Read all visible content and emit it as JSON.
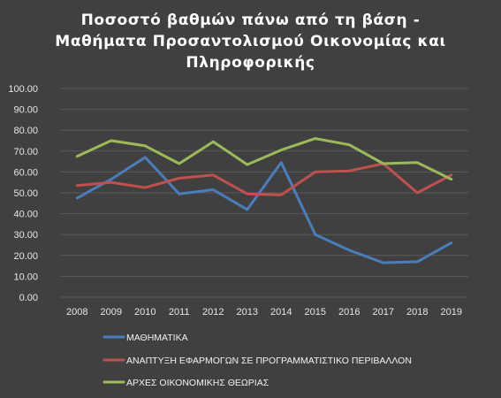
{
  "chart_data": {
    "type": "line",
    "title_lines": [
      "Ποσοστό βαθμών πάνω από τη βάση -",
      "Μαθήματα Προσαντολισμού Οικονομίας και",
      "Πληροφορικής"
    ],
    "x": [
      "2008",
      "2009",
      "2010",
      "2011",
      "2012",
      "2013",
      "2014",
      "2015",
      "2016",
      "2017",
      "2018",
      "2019"
    ],
    "ylim": [
      0,
      100
    ],
    "yticks": [
      "0.00",
      "10.00",
      "20.00",
      "30.00",
      "40.00",
      "50.00",
      "60.00",
      "70.00",
      "80.00",
      "90.00",
      "100.00"
    ],
    "grid": true,
    "legend_position": "bottom",
    "series": [
      {
        "name": "ΜΑΘΗΜΑΤΙΚΑ",
        "color": "#4a7ebb",
        "values": [
          47.5,
          56.5,
          67,
          49.5,
          51.5,
          42,
          64.5,
          30,
          22.5,
          16.5,
          17,
          26
        ]
      },
      {
        "name": "ΑΝΑΠΤΥΞΗ ΕΦΑΡΜΟΓΩΝ ΣΕ ΠΡΟΓΡΑΜΜΑΤΙΣΤΙΚΟ ΠΕΡΙΒΑΛΛΟΝ",
        "color": "#c0504d",
        "values": [
          53.5,
          55,
          52.5,
          57,
          58.5,
          49.5,
          49,
          60,
          60.5,
          64,
          50,
          58.5
        ]
      },
      {
        "name": "ΑΡΧΕΣ ΟΙΚΟΝΟΜΙΚΗΣ ΘΕΩΡΙΑΣ",
        "color": "#9bbb59",
        "values": [
          67.5,
          75,
          72.5,
          64,
          74.5,
          63.5,
          70.5,
          76,
          73,
          64,
          64.5,
          56.5
        ]
      }
    ]
  }
}
